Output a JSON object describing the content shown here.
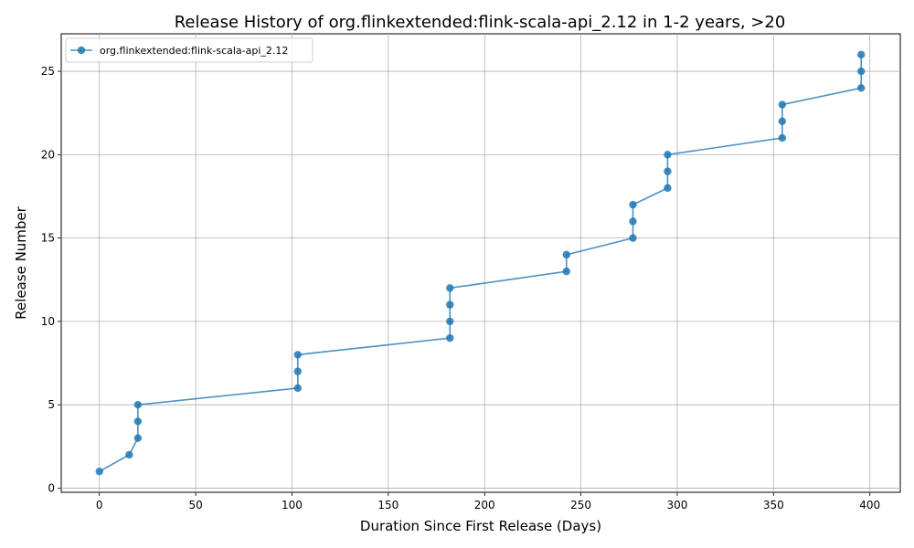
{
  "chart_data": {
    "type": "line",
    "title": "Release History of org.flinkextended:flink-scala-api_2.12 in 1-2 years, >20",
    "xlabel": "Duration Since First Release (Days)",
    "ylabel": "Release Number",
    "xlim": [
      -19.8,
      415.8
    ],
    "ylim": [
      -0.25,
      27.25
    ],
    "xticks": [
      0,
      50,
      100,
      150,
      200,
      250,
      300,
      350,
      400
    ],
    "yticks": [
      0,
      5,
      10,
      15,
      20,
      25
    ],
    "grid": true,
    "legend_position": "top-left",
    "series": [
      {
        "name": "org.flinkextended:flink-scala-api_2.12",
        "color": "#1f77b4",
        "x": [
          0,
          15.5,
          20,
          20,
          20,
          103,
          103,
          103,
          182,
          182,
          182,
          182,
          242.5,
          242.5,
          277,
          277,
          277,
          295,
          295,
          295,
          354.5,
          354.5,
          354.5,
          395.5,
          395.5,
          395.5
        ],
        "y": [
          1,
          2,
          3,
          4,
          5,
          6,
          7,
          8,
          9,
          10,
          11,
          12,
          13,
          14,
          15,
          16,
          17,
          18,
          19,
          20,
          21,
          22,
          23,
          24,
          25,
          26
        ]
      }
    ]
  }
}
